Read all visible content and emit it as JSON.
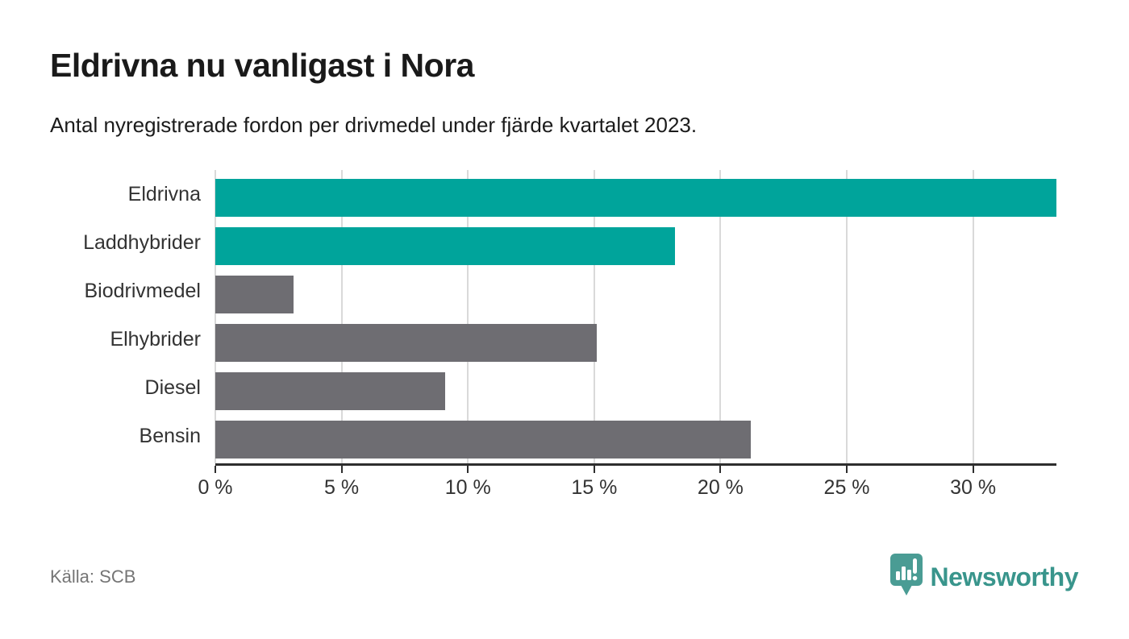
{
  "header": {
    "title": "Eldrivna nu vanligast i Nora",
    "subtitle": "Antal nyregistrerade fordon per drivmedel under fjärde kvartalet 2023."
  },
  "chart_data": {
    "type": "bar",
    "orientation": "horizontal",
    "title": "Eldrivna nu vanligast i Nora",
    "subtitle": "Antal nyregistrerade fordon per drivmedel under fjärde kvartalet 2023.",
    "xlabel": "",
    "ylabel": "",
    "unit": "%",
    "xlim": [
      0,
      33.3
    ],
    "grid": true,
    "legend": false,
    "categories": [
      "Eldrivna",
      "Laddhybrider",
      "Biodrivmedel",
      "Elhybrider",
      "Diesel",
      "Bensin"
    ],
    "values": [
      33.3,
      18.2,
      3.1,
      15.1,
      9.1,
      21.2
    ],
    "bar_colors": [
      "#00a49b",
      "#00a49b",
      "#6e6d72",
      "#6e6d72",
      "#6e6d72",
      "#6e6d72"
    ],
    "ticks": [
      {
        "value": 0,
        "label": "0 %"
      },
      {
        "value": 5,
        "label": "5 %"
      },
      {
        "value": 10,
        "label": "10 %"
      },
      {
        "value": 15,
        "label": "15 %"
      },
      {
        "value": 20,
        "label": "20 %"
      },
      {
        "value": 25,
        "label": "25 %"
      },
      {
        "value": 30,
        "label": "30 %"
      }
    ]
  },
  "colors": {
    "highlight_bar": "#00a49b",
    "default_bar": "#6e6d72",
    "gridline": "#d9d9d9",
    "axis_line": "#2e2e2e",
    "brand_text": "#39958c",
    "brand_icon": "#4a9c94"
  },
  "footer": {
    "source": "Källa: SCB",
    "brand": "Newsworthy",
    "brand_icon": "newsworthy-pin-chart-icon"
  }
}
